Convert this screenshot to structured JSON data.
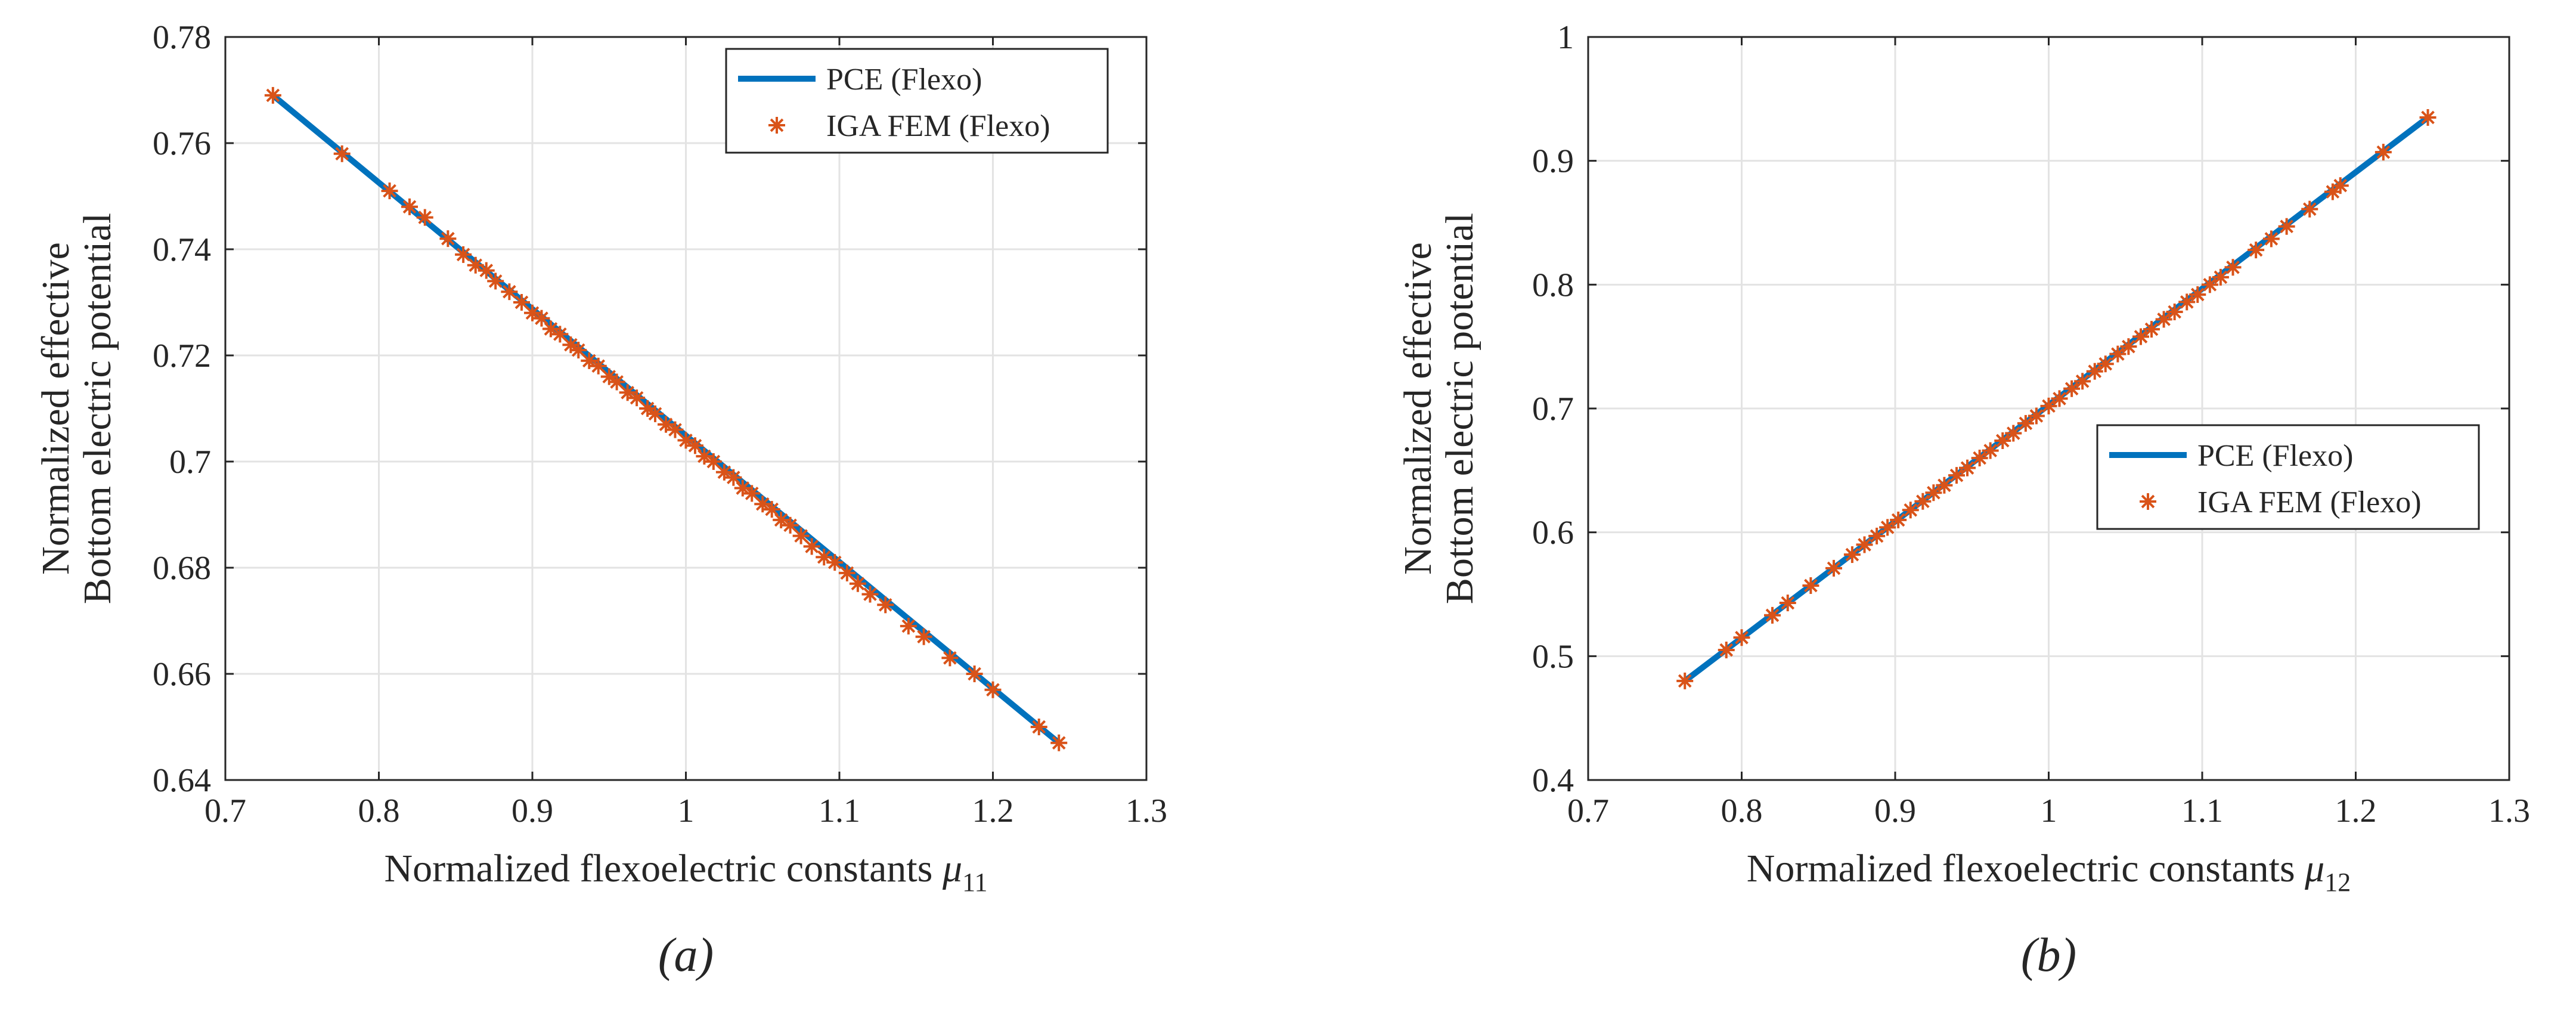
{
  "chart_data": [
    {
      "type": "line",
      "panel_label": "(a)",
      "xlabel": "Normalized flexoelectric constants μ11",
      "xlabel_main": "Normalized flexoelectric constants ",
      "xlabel_symbol": "μ",
      "xlabel_sub": "11",
      "ylabel": [
        "Normalized effective",
        "Bottom electric potential"
      ],
      "xlim": [
        0.7,
        1.3
      ],
      "ylim": [
        0.64,
        0.78
      ],
      "xticks": [
        "0.7",
        "0.8",
        "0.9",
        "1",
        "1.1",
        "1.2",
        "1.3"
      ],
      "yticks": [
        "0.64",
        "0.66",
        "0.68",
        "0.7",
        "0.72",
        "0.74",
        "0.76",
        "0.78"
      ],
      "legend_position": "top-right",
      "grid": true,
      "series": [
        {
          "name": "PCE (Flexo)",
          "style": "line",
          "color": "#0072BD",
          "x": [
            0.731,
            1.243
          ],
          "y": [
            0.769,
            0.647
          ]
        },
        {
          "name": "IGA FEM (Flexo)",
          "style": "marker-star",
          "color": "#D95319",
          "x": [
            0.731,
            0.776,
            0.807,
            0.82,
            0.83,
            0.845,
            0.855,
            0.863,
            0.87,
            0.876,
            0.885,
            0.893,
            0.9,
            0.906,
            0.912,
            0.918,
            0.925,
            0.93,
            0.937,
            0.943,
            0.95,
            0.955,
            0.962,
            0.968,
            0.975,
            0.98,
            0.987,
            0.993,
            1.0,
            1.006,
            1.012,
            1.018,
            1.025,
            1.031,
            1.037,
            1.043,
            1.05,
            1.056,
            1.062,
            1.068,
            1.075,
            1.082,
            1.09,
            1.097,
            1.105,
            1.112,
            1.12,
            1.13,
            1.145,
            1.155,
            1.172,
            1.188,
            1.2,
            1.23,
            1.243
          ],
          "y": [
            0.769,
            0.758,
            0.751,
            0.748,
            0.746,
            0.742,
            0.739,
            0.737,
            0.736,
            0.734,
            0.732,
            0.73,
            0.728,
            0.727,
            0.725,
            0.724,
            0.722,
            0.721,
            0.719,
            0.718,
            0.716,
            0.715,
            0.713,
            0.712,
            0.71,
            0.709,
            0.707,
            0.706,
            0.704,
            0.703,
            0.701,
            0.7,
            0.698,
            0.697,
            0.695,
            0.694,
            0.692,
            0.691,
            0.689,
            0.688,
            0.686,
            0.684,
            0.682,
            0.681,
            0.679,
            0.677,
            0.675,
            0.673,
            0.669,
            0.667,
            0.663,
            0.66,
            0.657,
            0.65,
            0.647
          ]
        }
      ]
    },
    {
      "type": "line",
      "panel_label": "(b)",
      "xlabel": "Normalized flexoelectric constants μ12",
      "xlabel_main": "Normalized flexoelectric constants ",
      "xlabel_symbol": "μ",
      "xlabel_sub": "12",
      "ylabel": [
        "Normalized effective",
        "Bottom electric potential"
      ],
      "xlim": [
        0.7,
        1.3
      ],
      "ylim": [
        0.4,
        1.0
      ],
      "xticks": [
        "0.7",
        "0.8",
        "0.9",
        "1",
        "1.1",
        "1.2",
        "1.3"
      ],
      "yticks": [
        "0.4",
        "0.5",
        "0.6",
        "0.7",
        "0.8",
        "0.9",
        "1"
      ],
      "legend_position": "right",
      "grid": true,
      "series": [
        {
          "name": "PCE (Flexo)",
          "style": "line",
          "color": "#0072BD",
          "x": [
            0.763,
            1.247
          ],
          "y": [
            0.48,
            0.935
          ]
        },
        {
          "name": "IGA FEM (Flexo)",
          "style": "marker-star",
          "color": "#D95319",
          "x": [
            0.763,
            0.79,
            0.8,
            0.82,
            0.83,
            0.845,
            0.86,
            0.872,
            0.88,
            0.888,
            0.895,
            0.902,
            0.91,
            0.918,
            0.925,
            0.932,
            0.94,
            0.947,
            0.955,
            0.962,
            0.97,
            0.977,
            0.985,
            0.992,
            1.0,
            1.007,
            1.015,
            1.022,
            1.03,
            1.037,
            1.045,
            1.052,
            1.06,
            1.067,
            1.075,
            1.082,
            1.09,
            1.097,
            1.105,
            1.112,
            1.12,
            1.135,
            1.145,
            1.155,
            1.17,
            1.185,
            1.19,
            1.218,
            1.247
          ],
          "y": [
            0.48,
            0.505,
            0.515,
            0.533,
            0.543,
            0.557,
            0.571,
            0.582,
            0.59,
            0.597,
            0.604,
            0.61,
            0.618,
            0.625,
            0.632,
            0.638,
            0.646,
            0.652,
            0.66,
            0.666,
            0.674,
            0.68,
            0.688,
            0.694,
            0.702,
            0.708,
            0.716,
            0.722,
            0.73,
            0.736,
            0.744,
            0.75,
            0.758,
            0.764,
            0.772,
            0.778,
            0.786,
            0.792,
            0.8,
            0.806,
            0.814,
            0.828,
            0.837,
            0.847,
            0.861,
            0.875,
            0.88,
            0.907,
            0.935
          ]
        }
      ]
    }
  ]
}
